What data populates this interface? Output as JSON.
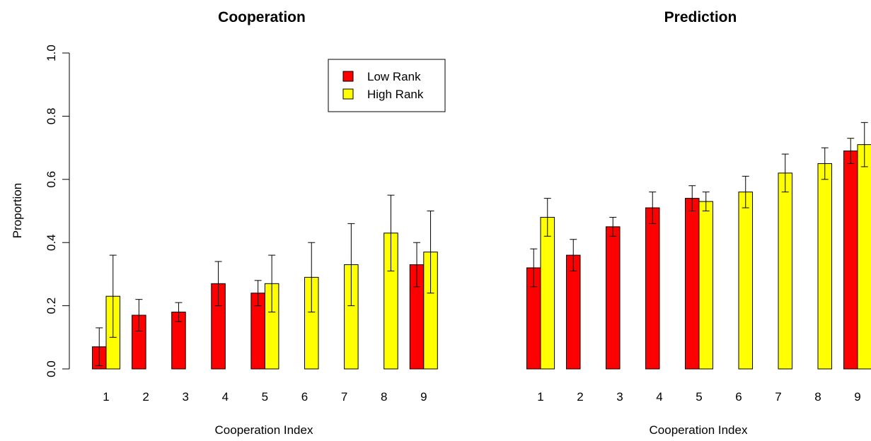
{
  "chart_data": [
    {
      "type": "bar",
      "title": "Cooperation",
      "xlabel": "Cooperation Index",
      "ylabel": "Proportion",
      "ylim": [
        0,
        1
      ],
      "yticks": [
        "0.0",
        "0.2",
        "0.4",
        "0.6",
        "0.8",
        "1.0"
      ],
      "categories": [
        "1",
        "2",
        "3",
        "4",
        "5",
        "6",
        "7",
        "8",
        "9"
      ],
      "legend": {
        "position": "top-right",
        "entries": [
          "Low Rank",
          "High Rank"
        ]
      },
      "series": [
        {
          "name": "Low Rank",
          "color": "#ff0000",
          "values": [
            0.07,
            0.17,
            0.18,
            0.27,
            0.24,
            null,
            null,
            null,
            0.33
          ],
          "err_low": [
            0.01,
            0.12,
            0.15,
            0.2,
            0.2,
            null,
            null,
            null,
            0.26
          ],
          "err_high": [
            0.13,
            0.22,
            0.21,
            0.34,
            0.28,
            null,
            null,
            null,
            0.4
          ]
        },
        {
          "name": "High Rank",
          "color": "#ffff00",
          "values": [
            0.23,
            null,
            null,
            null,
            0.27,
            0.29,
            0.33,
            0.43,
            0.37
          ],
          "err_low": [
            0.1,
            null,
            null,
            null,
            0.18,
            0.18,
            0.2,
            0.31,
            0.24
          ],
          "err_high": [
            0.36,
            null,
            null,
            null,
            0.36,
            0.4,
            0.46,
            0.55,
            0.5
          ]
        }
      ]
    },
    {
      "type": "bar",
      "title": "Prediction",
      "xlabel": "Cooperation Index",
      "ylabel": "",
      "ylim": [
        0,
        1
      ],
      "categories": [
        "1",
        "2",
        "3",
        "4",
        "5",
        "6",
        "7",
        "8",
        "9"
      ],
      "series": [
        {
          "name": "Low Rank",
          "color": "#ff0000",
          "values": [
            0.32,
            0.36,
            0.45,
            0.51,
            0.54,
            null,
            null,
            null,
            0.69
          ],
          "err_low": [
            0.26,
            0.31,
            0.42,
            0.46,
            0.5,
            null,
            null,
            null,
            0.65
          ],
          "err_high": [
            0.38,
            0.41,
            0.48,
            0.56,
            0.58,
            null,
            null,
            null,
            0.73
          ]
        },
        {
          "name": "High Rank",
          "color": "#ffff00",
          "values": [
            0.48,
            null,
            null,
            null,
            0.53,
            0.56,
            0.62,
            0.65,
            0.71
          ],
          "err_low": [
            0.42,
            null,
            null,
            null,
            0.5,
            0.51,
            0.56,
            0.6,
            0.64
          ],
          "err_high": [
            0.54,
            null,
            null,
            null,
            0.56,
            0.61,
            0.68,
            0.7,
            0.78
          ]
        }
      ]
    }
  ]
}
